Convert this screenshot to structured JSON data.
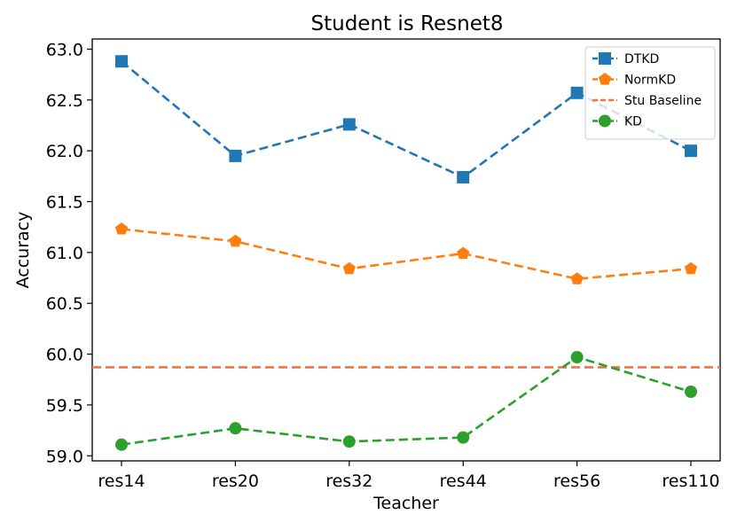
{
  "chart_data": {
    "type": "line",
    "title": "Student is Resnet8",
    "xlabel": "Teacher",
    "ylabel": "Accuracy",
    "categories": [
      "res14",
      "res20",
      "res32",
      "res44",
      "res56",
      "res110"
    ],
    "ylim": [
      58.95,
      63.1
    ],
    "yticks": [
      "59.0",
      "59.5",
      "60.0",
      "60.5",
      "61.0",
      "61.5",
      "62.0",
      "62.5",
      "63.0"
    ],
    "grid": false,
    "legend_position": "top-right",
    "series": [
      {
        "name": "DTKD",
        "marker": "square",
        "color": "#1f77b4",
        "values": [
          62.88,
          61.95,
          62.26,
          61.74,
          62.57,
          62.0
        ]
      },
      {
        "name": "NormKD",
        "marker": "pentagon",
        "color": "#ff7f0e",
        "values": [
          61.23,
          61.11,
          60.84,
          60.99,
          60.74,
          60.84
        ]
      },
      {
        "name": "Stu Baseline",
        "marker": "none",
        "color": "#f4733f",
        "horizontal": true,
        "value": 59.87
      },
      {
        "name": "KD",
        "marker": "circle",
        "color": "#2ca02c",
        "values": [
          59.11,
          59.27,
          59.14,
          59.18,
          59.97,
          59.63
        ]
      }
    ]
  }
}
